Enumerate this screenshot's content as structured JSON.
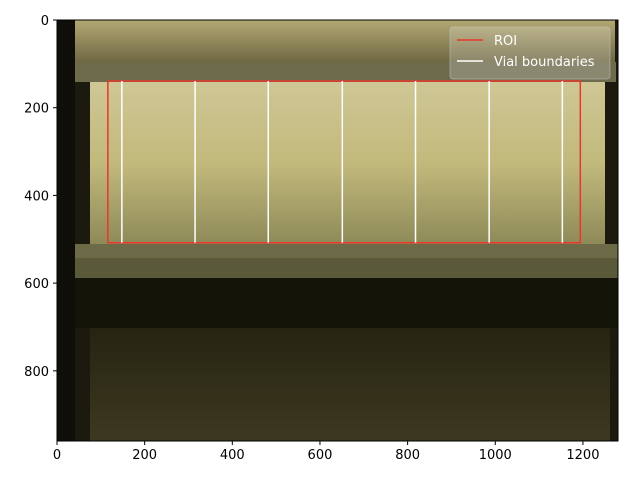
{
  "chart_data": {
    "type": "image",
    "xlim": [
      0,
      1280
    ],
    "ylim": [
      960,
      0
    ],
    "xticks": [
      0,
      200,
      400,
      600,
      800,
      1000,
      1200
    ],
    "yticks": [
      0,
      200,
      400,
      600,
      800
    ],
    "legend": "upper right",
    "series": [
      {
        "name": "ROI",
        "color": "#e8372a",
        "x": [
          116,
          1194,
          1194,
          116,
          116
        ],
        "y": [
          139,
          139,
          508,
          508,
          139
        ]
      },
      {
        "name": "Vial boundaries",
        "color": "#ffffff",
        "x": [
          148,
          148,
          null,
          315,
          315,
          null,
          482,
          482,
          null,
          651,
          651,
          null,
          818,
          818,
          null,
          986,
          986,
          null,
          1153,
          1153
        ],
        "y": [
          139,
          508,
          null,
          139,
          508,
          null,
          139,
          508,
          null,
          139,
          508,
          null,
          139,
          508,
          null,
          139,
          508,
          null,
          139,
          508
        ]
      }
    ]
  }
}
